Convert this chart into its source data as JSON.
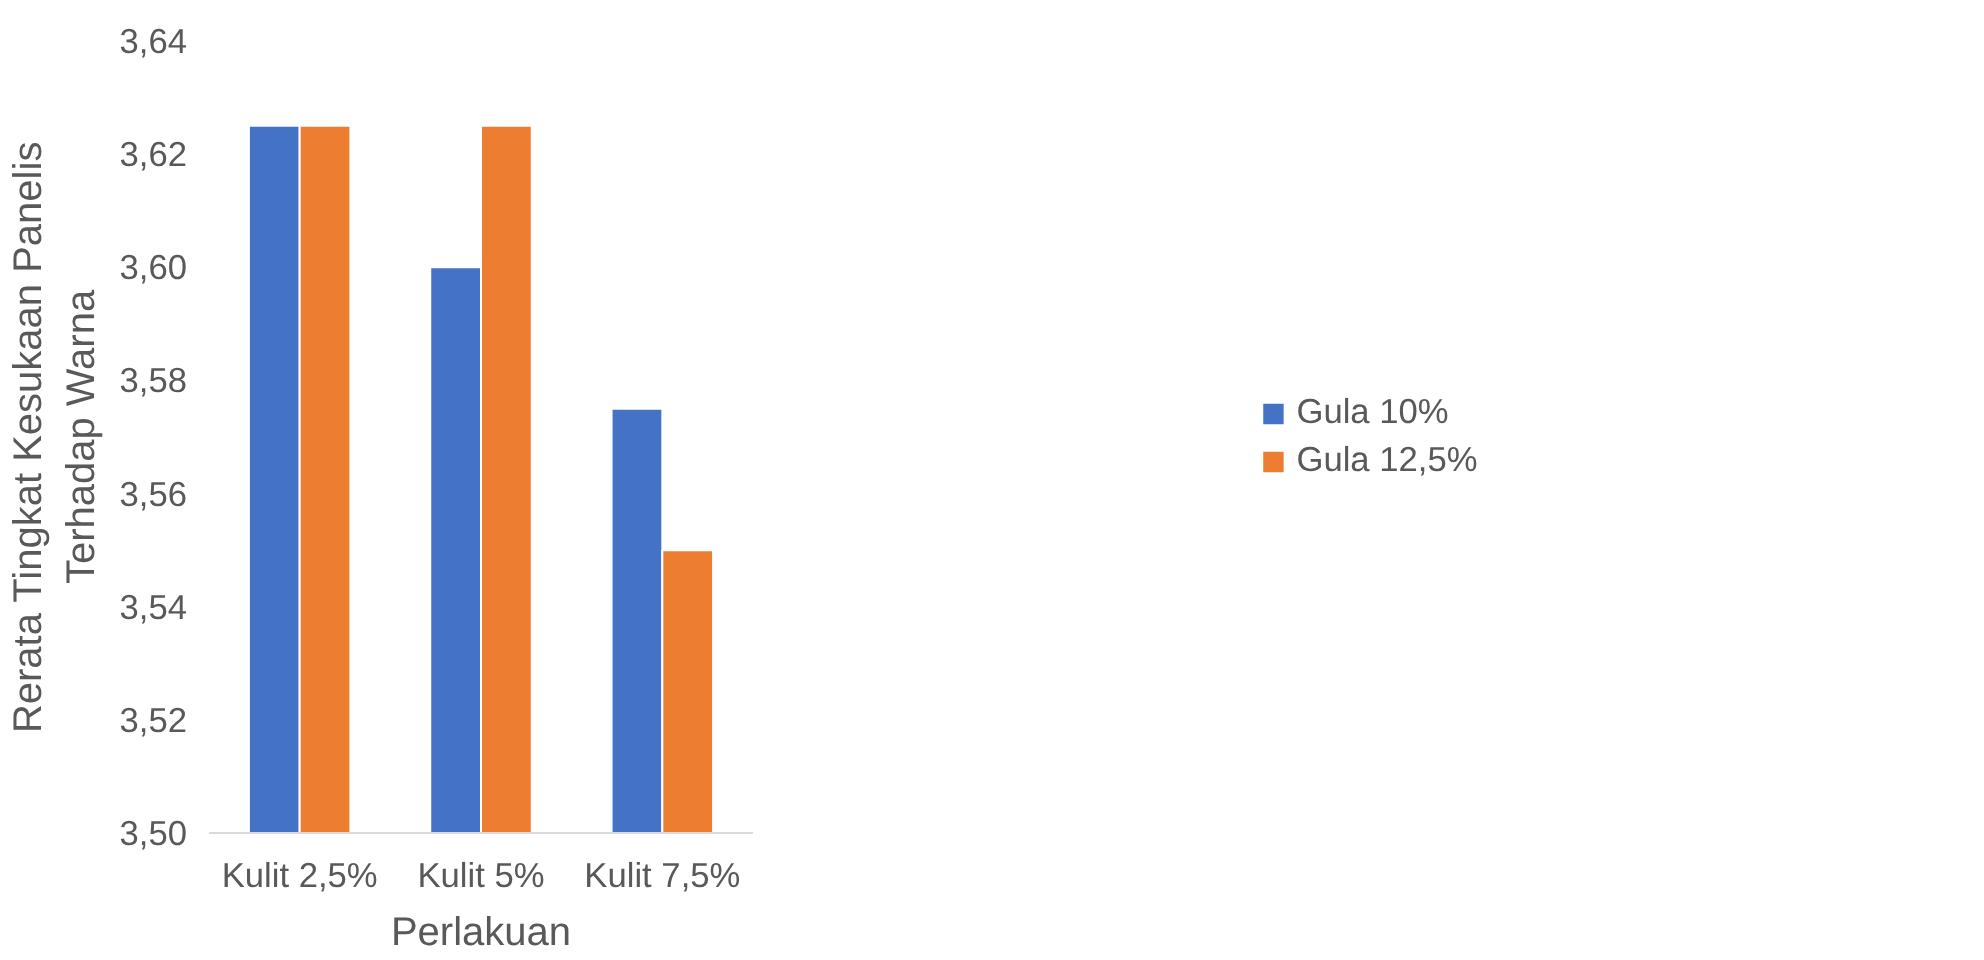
{
  "chart_data": {
    "type": "bar",
    "xlabel": "Perlakuan",
    "ylabel": "Rerata Tingkat Kesukaan Panelis\nTerhadap Warna",
    "categories": [
      "Kulit 2,5%",
      "Kulit 5%",
      "Kulit 7,5%"
    ],
    "series": [
      {
        "name": "Gula 10%",
        "color": "#4472c4",
        "values": [
          3.625,
          3.6,
          3.575
        ]
      },
      {
        "name": "Gula 12,5%",
        "color": "#ed7d31",
        "values": [
          3.625,
          3.625,
          3.55
        ]
      }
    ],
    "ylim": [
      3.5,
      3.64
    ],
    "yticks": [
      {
        "value": 3.5,
        "label": "3,50"
      },
      {
        "value": 3.52,
        "label": "3,52"
      },
      {
        "value": 3.54,
        "label": "3,54"
      },
      {
        "value": 3.56,
        "label": "3,56"
      },
      {
        "value": 3.58,
        "label": "3,58"
      },
      {
        "value": 3.6,
        "label": "3,60"
      },
      {
        "value": 3.62,
        "label": "3,62"
      },
      {
        "value": 3.64,
        "label": "3,64"
      }
    ],
    "grid": false,
    "legend": "right"
  }
}
